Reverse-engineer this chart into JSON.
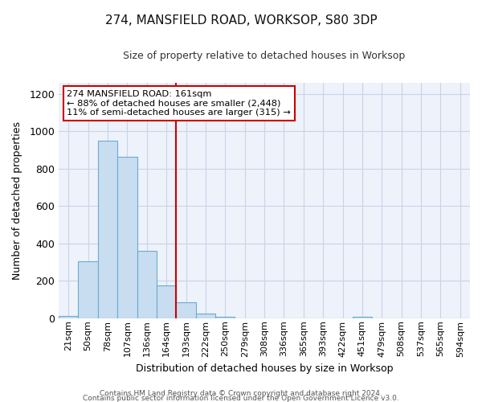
{
  "title": "274, MANSFIELD ROAD, WORKSOP, S80 3DP",
  "subtitle": "Size of property relative to detached houses in Worksop",
  "xlabel": "Distribution of detached houses by size in Worksop",
  "ylabel": "Number of detached properties",
  "categories": [
    "21sqm",
    "50sqm",
    "78sqm",
    "107sqm",
    "136sqm",
    "164sqm",
    "193sqm",
    "222sqm",
    "250sqm",
    "279sqm",
    "308sqm",
    "336sqm",
    "365sqm",
    "393sqm",
    "422sqm",
    "451sqm",
    "479sqm",
    "508sqm",
    "537sqm",
    "565sqm",
    "594sqm"
  ],
  "values": [
    10,
    305,
    950,
    865,
    360,
    175,
    85,
    25,
    8,
    0,
    0,
    0,
    0,
    0,
    0,
    8,
    0,
    0,
    0,
    0,
    0
  ],
  "bar_color": "#c8ddf0",
  "bar_edge_color": "#6aaad4",
  "bar_edge_width": 0.8,
  "grid_color": "#c8d4e8",
  "background_color": "#eef2fa",
  "annotation_line1": "274 MANSFIELD ROAD: 161sqm",
  "annotation_line2": "← 88% of detached houses are smaller (2,448)",
  "annotation_line3": "11% of semi-detached houses are larger (315) →",
  "red_line_x": 5.5,
  "red_line_color": "#cc0000",
  "annotation_box_color": "#ffffff",
  "annotation_box_edge": "#cc0000",
  "ylim": [
    0,
    1260
  ],
  "yticks": [
    0,
    200,
    400,
    600,
    800,
    1000,
    1200
  ],
  "footer_line1": "Contains HM Land Registry data © Crown copyright and database right 2024.",
  "footer_line2": "Contains public sector information licensed under the Open Government Licence v3.0."
}
